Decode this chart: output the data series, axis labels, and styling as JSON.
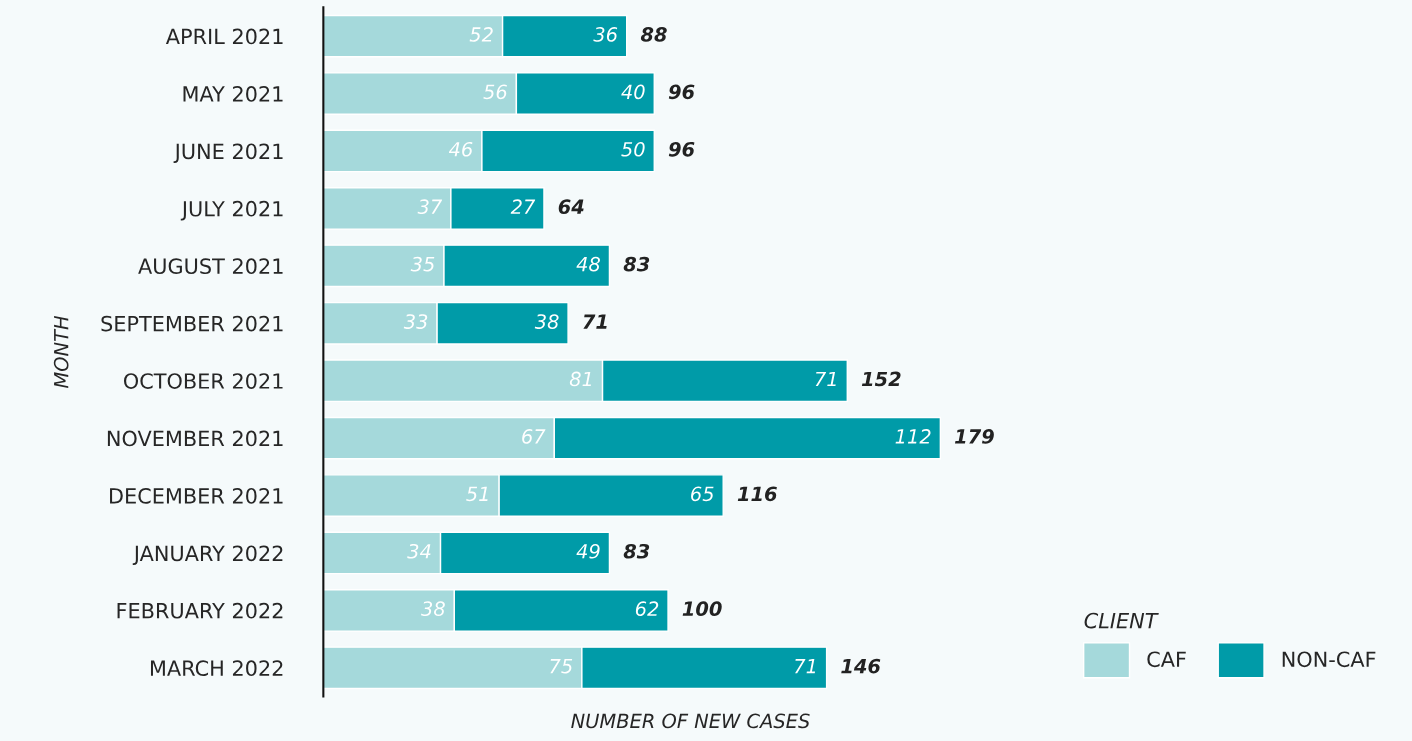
{
  "chart_data": {
    "type": "bar",
    "orientation": "horizontal",
    "stacked": true,
    "xlabel": "NUMBER OF NEW CASES",
    "ylabel": "MONTH",
    "legend_title": "CLIENT",
    "legend": "bottom right",
    "grid": false,
    "tick_labels": "y",
    "data_labels": true,
    "categories": [
      "APRIL 2021",
      "MAY 2021",
      "JUNE 2021",
      "JULY 2021",
      "AUGUST 2021",
      "SEPTEMBER 2021",
      "OCTOBER 2021",
      "NOVEMBER 2021",
      "DECEMBER 2021",
      "JANUARY 2022",
      "FEBRUARY 2022",
      "MARCH 2022"
    ],
    "series": [
      {
        "name": "CAF",
        "color": "#a5d9db",
        "values": [
          52,
          56,
          46,
          37,
          35,
          33,
          81,
          67,
          51,
          34,
          38,
          75
        ]
      },
      {
        "name": "NON-CAF",
        "color": "#009ba8",
        "values": [
          36,
          40,
          50,
          27,
          48,
          38,
          71,
          112,
          65,
          49,
          62,
          71
        ]
      }
    ],
    "totals": [
      "88",
      "96",
      "96",
      "64",
      "83",
      "71",
      "152",
      "179",
      "116",
      "83",
      "100",
      "146"
    ]
  }
}
